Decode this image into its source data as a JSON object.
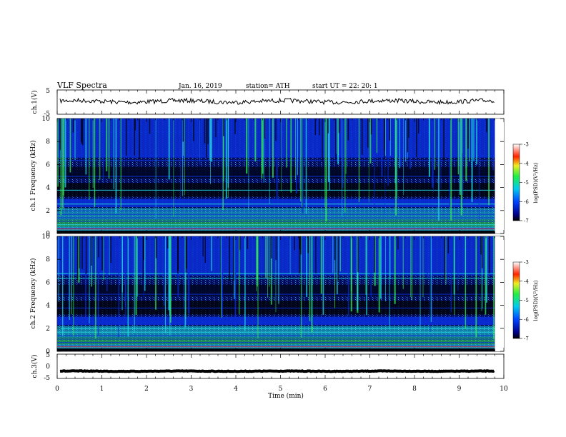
{
  "header": {
    "title": "VLF Spectra",
    "date": "Jan. 16, 2019",
    "station": "station= ATH",
    "start": "start UT = 22: 20: 1"
  },
  "chart_data": [
    {
      "type": "line",
      "panel": "ch1-waveform",
      "ylabel": "ch.1(V)",
      "ylim": [
        -5,
        5
      ],
      "yticks": [
        "5",
        "-5"
      ],
      "xlim": [
        0,
        10
      ],
      "series_level_v": 0.3
    },
    {
      "type": "heatmap",
      "panel": "ch1-spectrogram",
      "ylabel": "ch.1 Frequency (kHz)",
      "ylim": [
        0,
        10
      ],
      "yticks": [
        "0",
        "2",
        "4",
        "6",
        "8",
        "10"
      ],
      "xlim": [
        0,
        9.8
      ],
      "colorbar": {
        "label": "log(PSD)(V²/Hz)",
        "range": [
          -7,
          -3
        ],
        "ticks": [
          "-3",
          "-4",
          "-5",
          "-6",
          "-7"
        ]
      }
    },
    {
      "type": "heatmap",
      "panel": "ch2-spectrogram",
      "ylabel": "ch.2 Frequency (kHz)",
      "ylim": [
        0,
        10
      ],
      "yticks": [
        "0",
        "2",
        "4",
        "6",
        "8",
        "10"
      ],
      "xlim": [
        0,
        9.8
      ],
      "colorbar": {
        "label": "log(PSD)(V²/Hz)",
        "range": [
          -7,
          -3
        ],
        "ticks": [
          "-3",
          "-4",
          "-5",
          "-6",
          "-7"
        ]
      }
    },
    {
      "type": "line",
      "panel": "ch3-waveform",
      "ylabel": "ch.3(V)",
      "ylim": [
        -5,
        5
      ],
      "yticks": [
        "5",
        "0",
        "-5"
      ],
      "xlim": [
        0,
        10
      ],
      "series_level_v": -2.0
    }
  ],
  "xaxis": {
    "label": "Time (min)",
    "ticks": [
      "0",
      "1",
      "2",
      "3",
      "4",
      "5",
      "6",
      "7",
      "8",
      "9",
      "10"
    ],
    "range": [
      0,
      10
    ]
  },
  "colors": {
    "spec_background": "#000a55",
    "spec_blue": "#0a2ed8",
    "spec_cyan": "#22d8e0",
    "spec_green": "#33ee55",
    "spec_red": "#ee2222"
  }
}
